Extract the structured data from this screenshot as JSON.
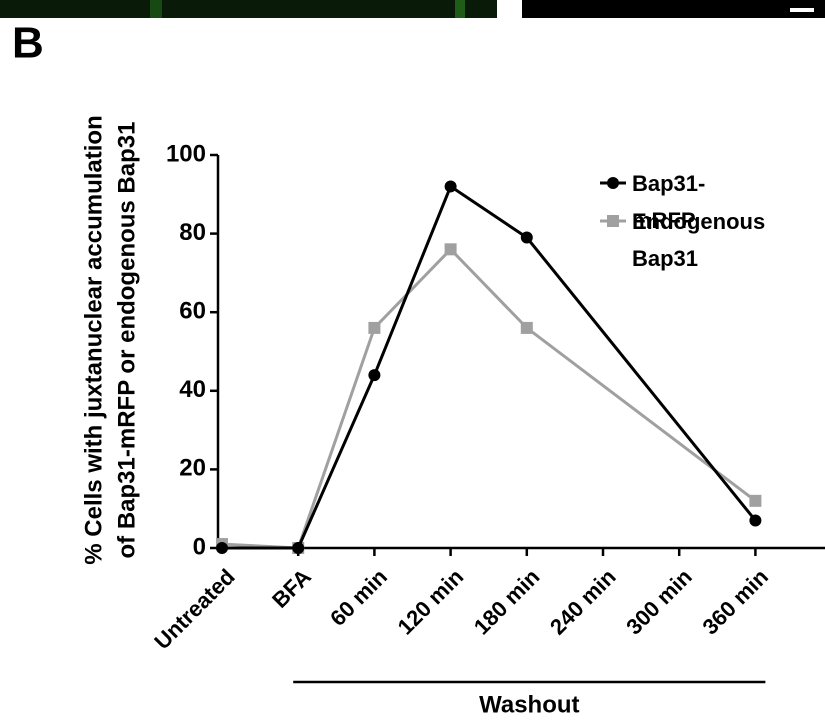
{
  "panel_label": "B",
  "chart_data": {
    "type": "line",
    "ylabel": [
      "% Cells with juxtanuclear accumulation",
      "of Bap31-mRFP or endogenous Bap31"
    ],
    "categories": [
      "Untreated",
      "BFA",
      "60 min",
      "120 min",
      "180 min",
      "240 min",
      "300 min",
      "360 min"
    ],
    "group_label": "Washout",
    "ylim": [
      0,
      100
    ],
    "yticks": [
      0,
      20,
      40,
      60,
      80,
      100
    ],
    "legend": "top-right",
    "series": [
      {
        "name": "Bap31-mRFP",
        "color": "#000000",
        "marker": "circle",
        "x": [
          "Untreated",
          "BFA",
          "60 min",
          "120 min",
          "180 min",
          "360 min"
        ],
        "values": [
          0,
          0,
          44,
          92,
          79,
          7
        ]
      },
      {
        "name": "Endogenous Bap31",
        "color": "#a0a0a0",
        "marker": "square",
        "x": [
          "Untreated",
          "BFA",
          "60 min",
          "120 min",
          "180 min",
          "360 min"
        ],
        "values": [
          1,
          0,
          56,
          76,
          56,
          12
        ]
      }
    ]
  }
}
